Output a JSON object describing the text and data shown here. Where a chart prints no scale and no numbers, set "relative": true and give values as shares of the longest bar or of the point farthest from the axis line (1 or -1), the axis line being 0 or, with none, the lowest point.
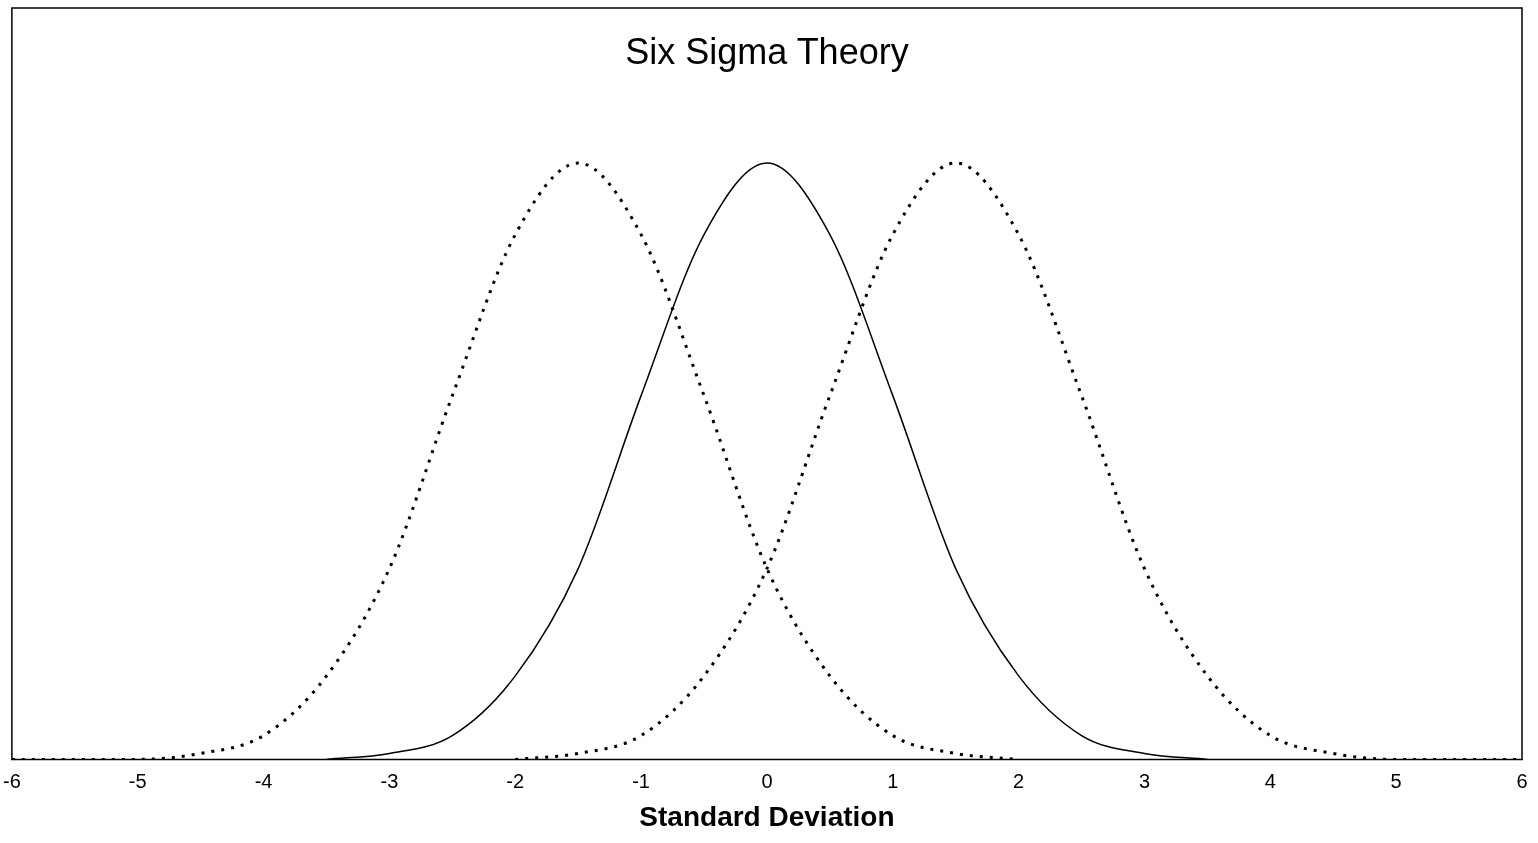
{
  "chart_data": {
    "type": "line",
    "title": "Six Sigma Theory",
    "xlabel": "Standard Deviation",
    "relative": true,
    "xlim": [
      -6,
      6
    ],
    "xticks": [
      -6,
      -5,
      -4,
      -3,
      -2,
      -1,
      0,
      1,
      2,
      3,
      4,
      5,
      6
    ],
    "grid": false,
    "legend": false,
    "marker": "none",
    "series": [
      {
        "color": "#000000",
        "line_style": "dotted",
        "x": [
          -6,
          -5.5,
          -5,
          -4.5,
          -4,
          -3.5,
          -3,
          -2.5,
          -2,
          -1.5,
          -1,
          -0.5,
          0,
          0.5,
          1,
          1.5,
          2
        ],
        "values": [
          0,
          0,
          0,
          0.01,
          0.04,
          0.14,
          0.32,
          0.61,
          0.88,
          1,
          0.88,
          0.61,
          0.32,
          0.14,
          0.04,
          0.01,
          0
        ]
      },
      {
        "color": "#000000",
        "line_style": "solid",
        "x": [
          -3.5,
          -3,
          -2.5,
          -2,
          -1.5,
          -1,
          -0.5,
          0,
          0.5,
          1,
          1.5,
          2,
          2.5,
          3,
          3.5
        ],
        "values": [
          0,
          0.01,
          0.04,
          0.14,
          0.32,
          0.61,
          0.88,
          1,
          0.88,
          0.61,
          0.32,
          0.14,
          0.04,
          0.01,
          0
        ]
      },
      {
        "color": "#000000",
        "line_style": "dotted",
        "x": [
          -2,
          -1.5,
          -1,
          -0.5,
          0,
          0.5,
          1,
          1.5,
          2,
          2.5,
          3,
          3.5,
          4,
          4.5,
          5,
          5.5,
          6
        ],
        "values": [
          0,
          0.01,
          0.04,
          0.14,
          0.32,
          0.61,
          0.88,
          1,
          0.88,
          0.61,
          0.32,
          0.14,
          0.04,
          0.01,
          0,
          0,
          0
        ]
      }
    ]
  }
}
